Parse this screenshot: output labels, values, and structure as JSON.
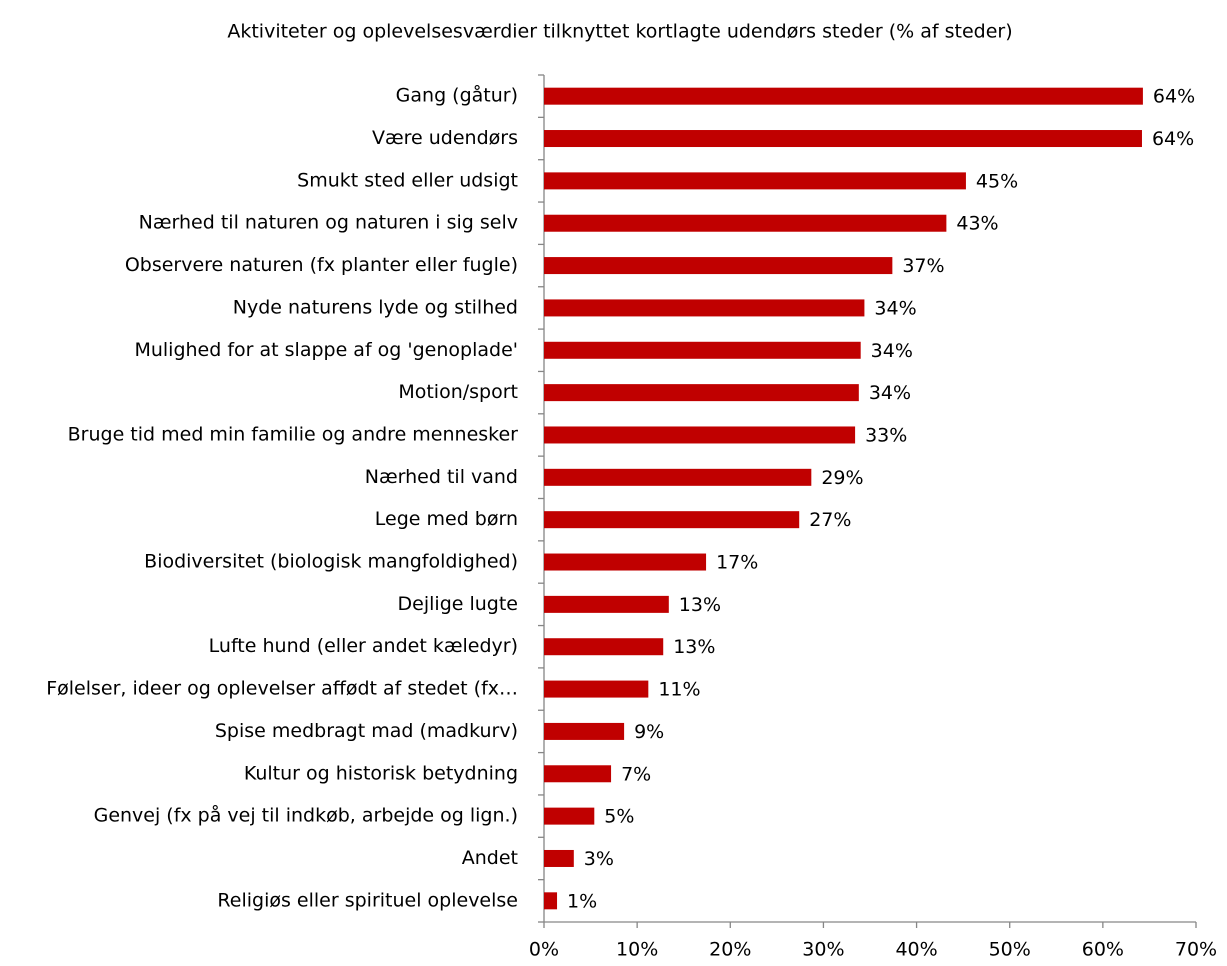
{
  "chart_data": {
    "type": "barh",
    "title": "Aktiviteter og oplevelsesværdier tilknyttet kortlagte udendørs steder (% af steder)",
    "categories": [
      "Gang (gåtur)",
      "Være udendørs",
      "Smukt sted eller udsigt",
      "Nærhed til naturen og naturen i sig selv",
      "Observere naturen  (fx planter eller fugle)",
      "Nyde naturens lyde og stilhed",
      "Mulighed for at slappe af og 'genoplade'",
      "Motion/sport",
      "Bruge tid med min familie og andre mennesker",
      "Nærhed til vand",
      "Lege med børn",
      "Biodiversitet (biologisk mangfoldighed)",
      "Dejlige lugte",
      "Lufte hund (eller andet kæledyr)",
      "Følelser, ideer og oplevelser affødt af stedet (fx…",
      "Spise medbragt mad (madkurv)",
      "Kultur og historisk betydning",
      "Genvej (fx på vej til indkøb, arbejde og lign.)",
      "Andet",
      "Religiøs eller spirituel oplevelse"
    ],
    "values": [
      64.3,
      64.2,
      45.3,
      43.2,
      37.4,
      34.4,
      34.0,
      33.8,
      33.4,
      28.7,
      27.4,
      17.4,
      13.4,
      12.8,
      11.2,
      8.6,
      7.2,
      5.4,
      3.2,
      1.4
    ],
    "value_labels": [
      "64%",
      "64%",
      "45%",
      "43%",
      "37%",
      "34%",
      "34%",
      "34%",
      "33%",
      "29%",
      "27%",
      "17%",
      "13%",
      "13%",
      "11%",
      "9%",
      "7%",
      "5%",
      "3%",
      "1%"
    ],
    "color": "#c00000",
    "xlim": [
      0,
      70
    ],
    "xticks": [
      {
        "value": 0,
        "label": "0%"
      },
      {
        "value": 10,
        "label": "10%"
      },
      {
        "value": 20,
        "label": "20%"
      },
      {
        "value": 30,
        "label": "30%"
      },
      {
        "value": 40,
        "label": "40%"
      },
      {
        "value": 50,
        "label": "50%"
      },
      {
        "value": 60,
        "label": "60%"
      },
      {
        "value": 70,
        "label": "70%"
      }
    ]
  }
}
